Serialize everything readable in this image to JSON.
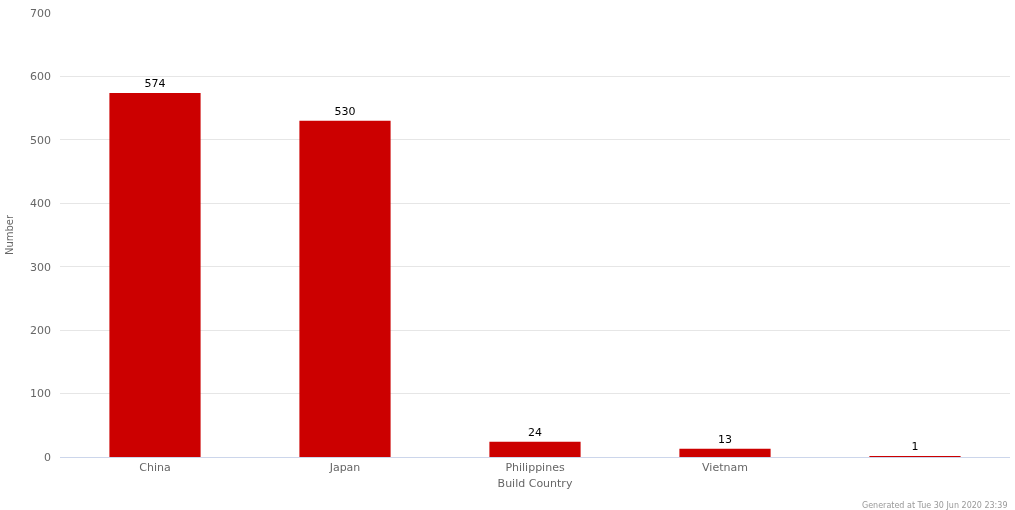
{
  "chart_data": {
    "type": "bar",
    "categories": [
      "China",
      "Japan",
      "Philippines",
      "Vietnam",
      null
    ],
    "values": [
      574,
      530,
      24,
      13,
      1
    ],
    "color": "#cc0000",
    "xlabel": "Build Country",
    "ylabel": "Number",
    "ylim": [
      0,
      700
    ],
    "yticks": [
      0,
      100,
      200,
      300,
      400,
      500,
      600,
      700
    ],
    "grid": "y",
    "data_labels": true,
    "annotations": [
      "Generated at Tue 30 Jun 2020 23:39"
    ]
  }
}
